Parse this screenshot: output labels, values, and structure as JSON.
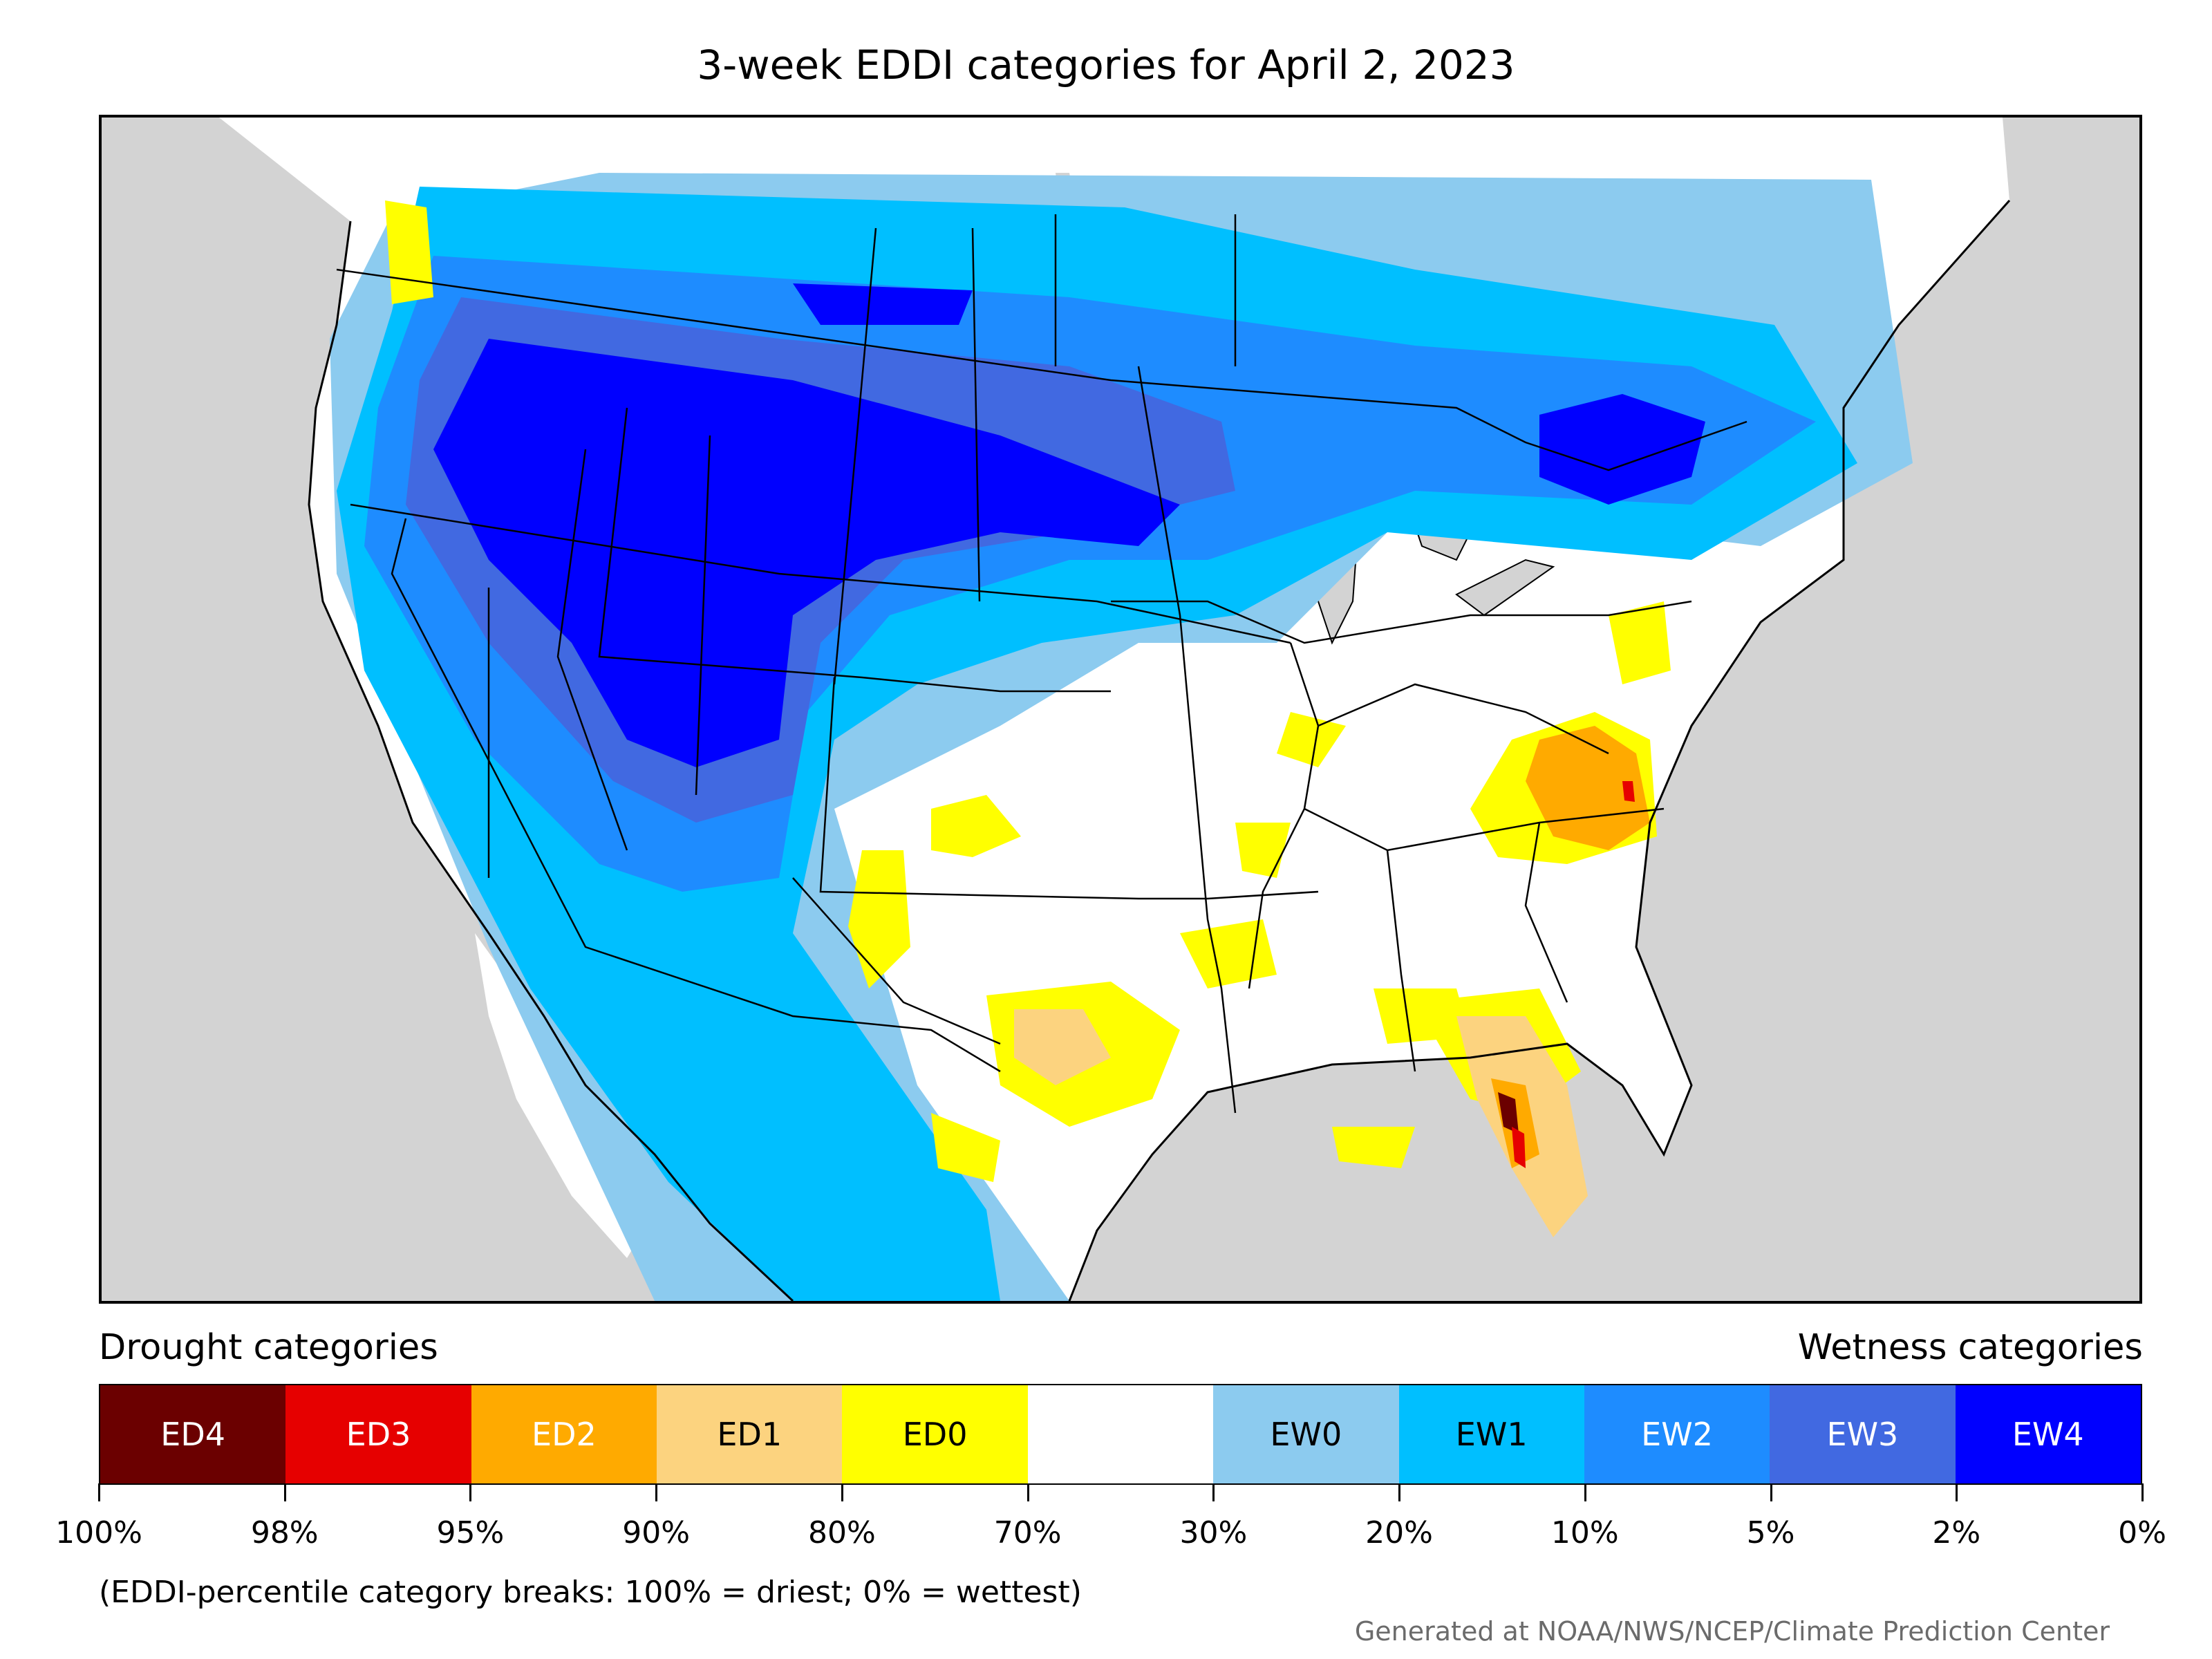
{
  "title": "3-week EDDI categories for April 2, 2023",
  "legend": {
    "drought_title": "Drought categories",
    "wetness_title": "Wetness categories",
    "categories": [
      {
        "label": "ED4",
        "color": "#6b0000",
        "text_color": "#ffffff"
      },
      {
        "label": "ED3",
        "color": "#e60000",
        "text_color": "#ffffff"
      },
      {
        "label": "ED2",
        "color": "#ffaa00",
        "text_color": "#ffffff"
      },
      {
        "label": "ED1",
        "color": "#fcd37f",
        "text_color": "#000000"
      },
      {
        "label": "ED0",
        "color": "#ffff00",
        "text_color": "#000000"
      },
      {
        "label": "",
        "color": "#ffffff",
        "text_color": "#000000"
      },
      {
        "label": "EW0",
        "color": "#8ccbef",
        "text_color": "#000000"
      },
      {
        "label": "EW1",
        "color": "#00bfff",
        "text_color": "#000000"
      },
      {
        "label": "EW2",
        "color": "#1e8cff",
        "text_color": "#ffffff"
      },
      {
        "label": "EW3",
        "color": "#4169e1",
        "text_color": "#ffffff"
      },
      {
        "label": "EW4",
        "color": "#0000ff",
        "text_color": "#ffffff"
      }
    ],
    "breaks": [
      "100%",
      "98%",
      "95%",
      "90%",
      "80%",
      "70%",
      "30%",
      "20%",
      "10%",
      "5%",
      "2%",
      "0%"
    ]
  },
  "note": "(EDDI-percentile category breaks: 100% = driest; 0% = wettest)",
  "credit": "Generated at NOAA/NWS/NCEP/Climate Prediction Center",
  "map": {
    "background_color": "#d3d3d3",
    "land_color": "#ffffff",
    "boundary_color": "#000000"
  }
}
